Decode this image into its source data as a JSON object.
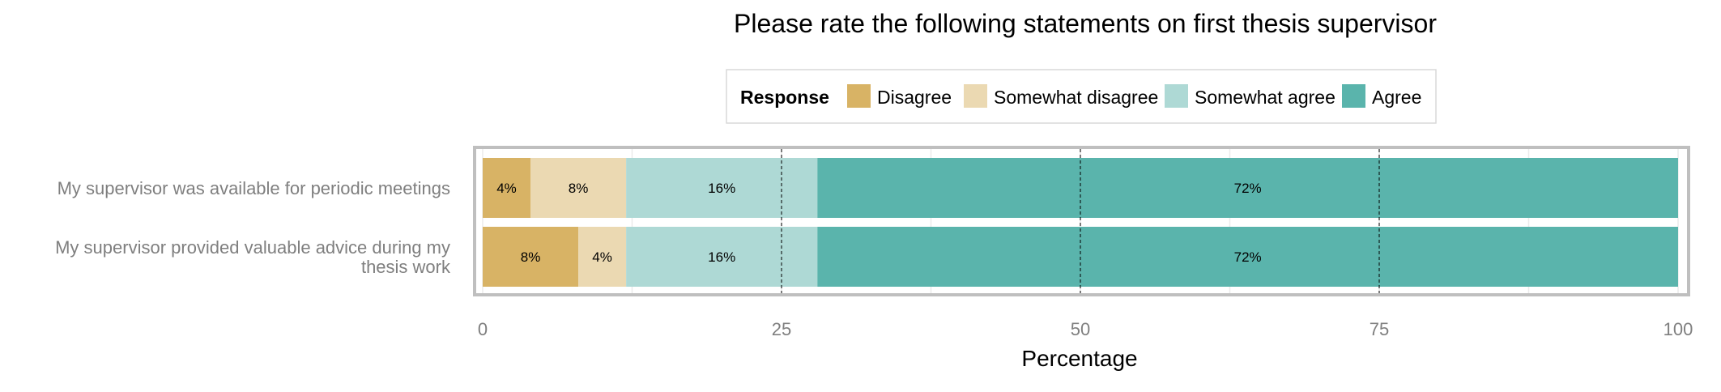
{
  "chart_data": {
    "type": "bar",
    "orientation": "horizontal",
    "stacked": true,
    "title": "Please rate the following statements on first thesis supervisor",
    "xlabel": "Percentage",
    "ylabel": "",
    "xlim": [
      0,
      100
    ],
    "xticks": [
      "0",
      "25",
      "50",
      "75",
      "100"
    ],
    "grid": true,
    "legend": {
      "title": "Response",
      "placement": "top-center"
    },
    "categories": [
      "My supervisor was available for periodic meetings",
      "My supervisor provided valuable advice during my thesis work"
    ],
    "category_lines": [
      [
        "My supervisor was available for periodic meetings"
      ],
      [
        "My supervisor provided valuable advice during my",
        "thesis work"
      ]
    ],
    "series": [
      {
        "name": "Disagree",
        "color": "#d8b365",
        "values": [
          4,
          8
        ],
        "labels": [
          "4%",
          "8%"
        ]
      },
      {
        "name": "Somewhat disagree",
        "color": "#ebd9b2",
        "values": [
          8,
          4
        ],
        "labels": [
          "8%",
          "4%"
        ]
      },
      {
        "name": "Somewhat agree",
        "color": "#aed9d5",
        "values": [
          16,
          16
        ],
        "labels": [
          "16%",
          "16%"
        ]
      },
      {
        "name": "Agree",
        "color": "#5ab4ac",
        "values": [
          72,
          72
        ],
        "labels": [
          "72%",
          "72%"
        ]
      }
    ]
  }
}
